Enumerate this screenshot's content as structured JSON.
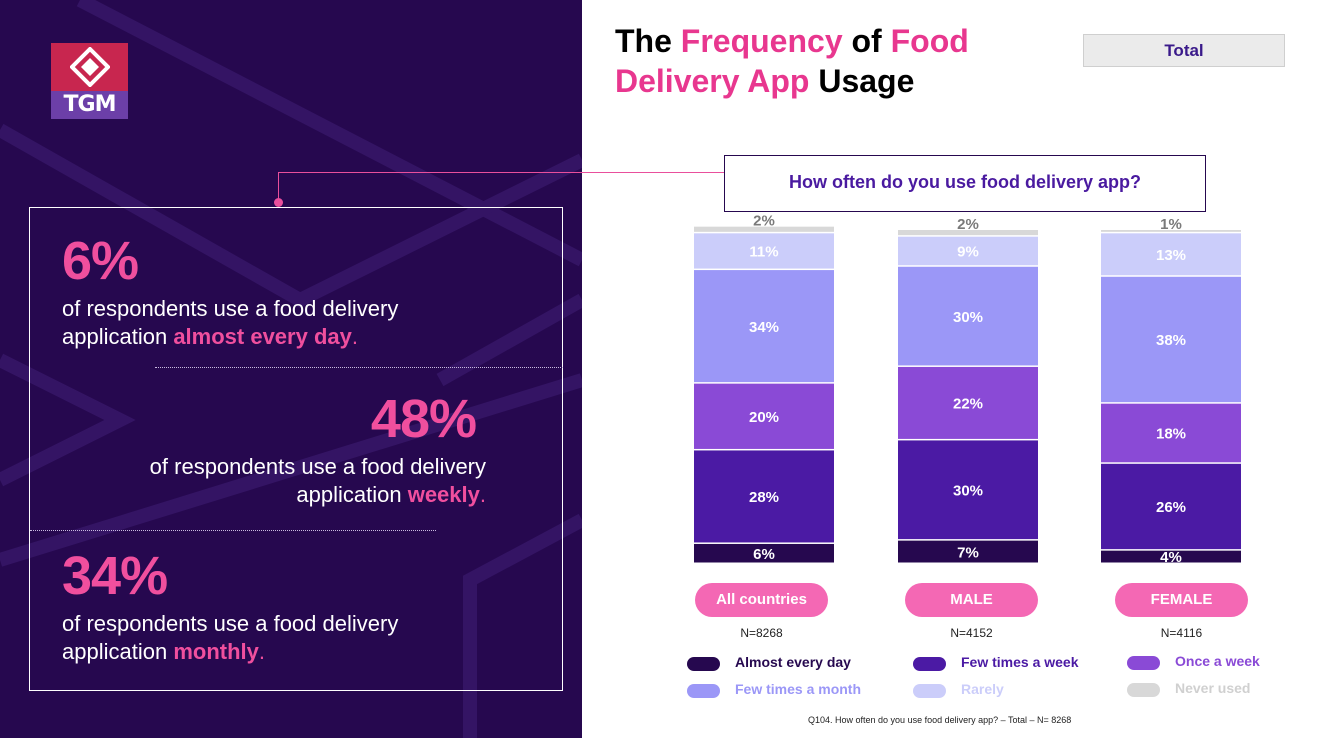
{
  "logo": {
    "text": "TGM"
  },
  "title": {
    "part1": "The ",
    "part2": "Frequency",
    "part3": " of ",
    "part4": "Food",
    "part5": "Delivery App",
    "part6": " Usage"
  },
  "total_button": "Total",
  "question": "How often do you use food delivery app?",
  "stats": [
    {
      "pct": "6%",
      "text_before": "of respondents use a food delivery",
      "text_line2": "application ",
      "highlight": "almost every day",
      "end": "."
    },
    {
      "pct": "48%",
      "text_before": "of respondents use a food delivery",
      "text_line2": "application ",
      "highlight": "weekly",
      "end": "."
    },
    {
      "pct": "34%",
      "text_before": "of respondents use a  food delivery",
      "text_line2": "application ",
      "highlight": "monthly",
      "end": "."
    }
  ],
  "chart_data": {
    "type": "bar",
    "stacked": true,
    "categories": [
      "All countries",
      "MALE",
      "FEMALE"
    ],
    "n_labels": [
      "N=8268",
      "N=4152",
      "N=4116"
    ],
    "series": [
      {
        "name": "Almost every day",
        "color": "#26084f",
        "values": [
          6,
          7,
          4
        ]
      },
      {
        "name": "Few times a week",
        "color": "#4b1aa4",
        "values": [
          28,
          30,
          26
        ]
      },
      {
        "name": "Once a week",
        "color": "#8a4ad6",
        "values": [
          20,
          22,
          18
        ]
      },
      {
        "name": "Few times a month",
        "color": "#9b97f7",
        "values": [
          34,
          30,
          38
        ]
      },
      {
        "name": "Rarely",
        "color": "#cbcdfa",
        "values": [
          11,
          9,
          13
        ]
      },
      {
        "name": "Never used",
        "color": "#d8d8d8",
        "values": [
          2,
          2,
          1
        ]
      }
    ],
    "ylim": [
      0,
      100
    ]
  },
  "footnote": "Q104. How often do you use food delivery app? – Total – N=  8268"
}
